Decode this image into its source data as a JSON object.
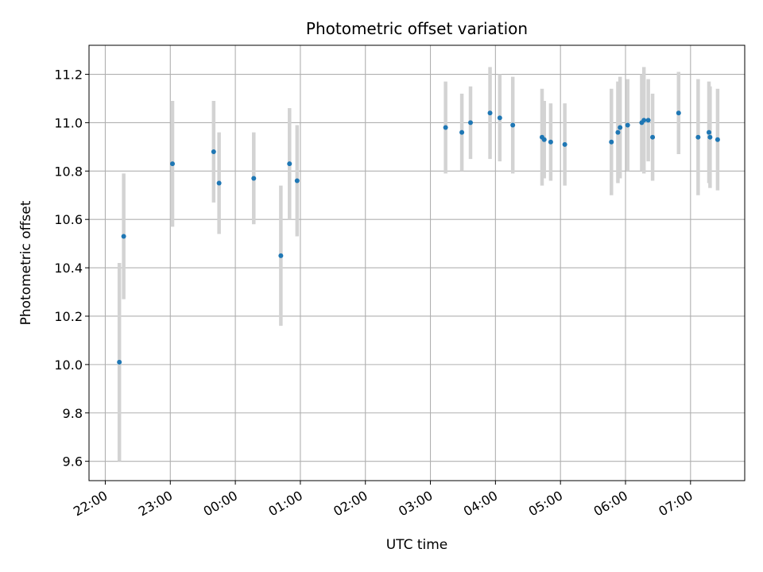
{
  "chart_data": {
    "type": "scatter",
    "title": "Photometric offset variation",
    "xlabel": "UTC time",
    "ylabel": "Photometric offset",
    "x_unit": "hours UTC, night spanning midnight (values below 24 are evening, above 24 are next-day)",
    "xlim": [
      "21:45",
      "07:50"
    ],
    "ylim": [
      9.52,
      11.32
    ],
    "x_ticks": [
      "22:00",
      "23:00",
      "00:00",
      "01:00",
      "02:00",
      "03:00",
      "04:00",
      "05:00",
      "06:00",
      "07:00"
    ],
    "y_ticks": [
      "9.6",
      "9.8",
      "10.0",
      "10.2",
      "10.4",
      "10.6",
      "10.8",
      "11.0",
      "11.2"
    ],
    "grid": true,
    "series": [
      {
        "points": [
          {
            "t": "22:13",
            "y": 10.01,
            "err": 0.41
          },
          {
            "t": "22:17",
            "y": 10.53,
            "err": 0.26
          },
          {
            "t": "23:02",
            "y": 10.83,
            "err": 0.26
          },
          {
            "t": "23:40",
            "y": 10.88,
            "err": 0.21
          },
          {
            "t": "23:45",
            "y": 10.75,
            "err": 0.21
          },
          {
            "t": "00:17",
            "y": 10.77,
            "err": 0.19
          },
          {
            "t": "00:42",
            "y": 10.45,
            "err": 0.29
          },
          {
            "t": "00:50",
            "y": 10.83,
            "err": 0.23
          },
          {
            "t": "00:57",
            "y": 10.76,
            "err": 0.23
          },
          {
            "t": "03:14",
            "y": 10.98,
            "err": 0.19
          },
          {
            "t": "03:29",
            "y": 10.96,
            "err": 0.16
          },
          {
            "t": "03:37",
            "y": 11.0,
            "err": 0.15
          },
          {
            "t": "03:55",
            "y": 11.04,
            "err": 0.19
          },
          {
            "t": "04:04",
            "y": 11.02,
            "err": 0.18
          },
          {
            "t": "04:16",
            "y": 10.99,
            "err": 0.2
          },
          {
            "t": "04:43",
            "y": 10.94,
            "err": 0.2
          },
          {
            "t": "04:45",
            "y": 10.93,
            "err": 0.16
          },
          {
            "t": "04:51",
            "y": 10.92,
            "err": 0.16
          },
          {
            "t": "05:04",
            "y": 10.91,
            "err": 0.17
          },
          {
            "t": "05:47",
            "y": 10.92,
            "err": 0.22
          },
          {
            "t": "05:53",
            "y": 10.96,
            "err": 0.21
          },
          {
            "t": "05:55",
            "y": 10.98,
            "err": 0.21
          },
          {
            "t": "06:02",
            "y": 10.99,
            "err": 0.19
          },
          {
            "t": "06:15",
            "y": 11.0,
            "err": 0.2
          },
          {
            "t": "06:17",
            "y": 11.01,
            "err": 0.22
          },
          {
            "t": "06:21",
            "y": 11.01,
            "err": 0.17
          },
          {
            "t": "06:25",
            "y": 10.94,
            "err": 0.18
          },
          {
            "t": "06:49",
            "y": 11.04,
            "err": 0.17
          },
          {
            "t": "07:07",
            "y": 10.94,
            "err": 0.24
          },
          {
            "t": "07:17",
            "y": 10.96,
            "err": 0.21
          },
          {
            "t": "07:18",
            "y": 10.94,
            "err": 0.21
          },
          {
            "t": "07:25",
            "y": 10.93,
            "err": 0.21
          }
        ]
      }
    ],
    "colors": {
      "marker": "#1f77b4",
      "errorbar": "#d3d3d3",
      "grid": "#b0b0b0",
      "axis": "#000000"
    }
  }
}
